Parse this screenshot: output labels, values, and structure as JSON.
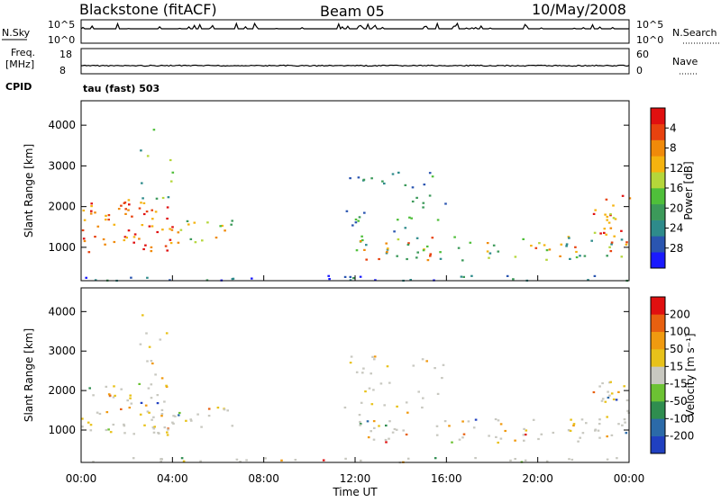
{
  "header": {
    "station": "Blackstone (fitACF)",
    "beam": "Beam 05",
    "date": "10/May/2008"
  },
  "panels": {
    "nsky_label": "N.Sky",
    "nsky_ticks": [
      "10^5",
      "10^0"
    ],
    "nsearch_label": "N.Search",
    "nsearch_ticks": [
      "10^5",
      "10^0"
    ],
    "freq_label_line1": "Freq.",
    "freq_label_line2": "[MHz]",
    "freq_ticks": [
      "18",
      "8"
    ],
    "nave_label": "Nave",
    "nave_ticks": [
      "60",
      "0"
    ],
    "cpid_label": "CPID",
    "cpid_value": "tau (fast) 503"
  },
  "chart_data": [
    {
      "type": "heatmap",
      "name": "power",
      "ylabel": "Slant Range [km]",
      "yticks": [
        "1000",
        "2000",
        "3000",
        "4000"
      ],
      "ylim": [
        180,
        4600
      ],
      "colorbar_label": "Power [dB]",
      "colorbar_ticks": [
        "4",
        "8",
        "12",
        "16",
        "20",
        "24",
        "28"
      ],
      "colors": [
        "#1a1aff",
        "#2a55b0",
        "#2e8b8b",
        "#3c9a5a",
        "#4fbf3a",
        "#b5d63a",
        "#f5b30f",
        "#f08a0a",
        "#e8420f",
        "#e01010"
      ]
    },
    {
      "type": "heatmap",
      "name": "velocity",
      "ylabel": "Slant Range [km]",
      "yticks": [
        "1000",
        "2000",
        "3000",
        "4000"
      ],
      "ylim": [
        180,
        4600
      ],
      "xlabel": "Time UT",
      "xticks": [
        "00:00",
        "04:00",
        "08:00",
        "12:00",
        "16:00",
        "20:00",
        "00:00"
      ],
      "colorbar_label": "Velocity [m s⁻¹]",
      "colorbar_ticks": [
        "200",
        "100",
        "50",
        "15",
        "-15",
        "-50",
        "-100",
        "-200"
      ],
      "colors": [
        "#2040c0",
        "#2b6aa8",
        "#2f8d4f",
        "#6cc233",
        "#c8c8c0",
        "#e8c21a",
        "#f09a10",
        "#e86010",
        "#e01010"
      ]
    }
  ]
}
